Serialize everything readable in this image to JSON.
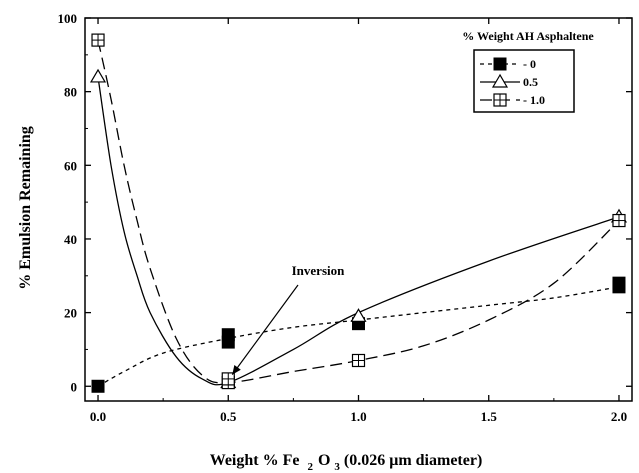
{
  "chart_data": {
    "type": "scatter",
    "xlabel_parts": [
      "Weight % Fe",
      "2",
      "O",
      "3",
      " (0.026 μm diameter)"
    ],
    "ylabel": "% Emulsion Remaining",
    "xlim": [
      -0.05,
      2.05
    ],
    "ylim": [
      -4,
      100
    ],
    "x_ticks": [
      0.0,
      0.5,
      1.0,
      1.5,
      2.0
    ],
    "x_tick_labels": [
      "0.0",
      "0.5",
      "1.0",
      "1.5",
      "2.0"
    ],
    "y_ticks": [
      0,
      20,
      40,
      60,
      80,
      100
    ],
    "y_tick_labels": [
      "0",
      "20",
      "40",
      "60",
      "80",
      "100"
    ],
    "legend": {
      "title": "% Weight AH Asphaltene",
      "placement": "top-right"
    },
    "series": [
      {
        "name": "0",
        "legend_label": "- 0",
        "marker": "filled-square",
        "line": "short-dash",
        "points": [
          {
            "x": 0.0,
            "y": 0
          },
          {
            "x": 0.5,
            "y": 12
          },
          {
            "x": 0.5,
            "y": 14
          },
          {
            "x": 1.0,
            "y": 17
          },
          {
            "x": 2.0,
            "y": 27
          },
          {
            "x": 2.0,
            "y": 28
          }
        ],
        "curve": [
          {
            "x": 0.0,
            "y": 0
          },
          {
            "x": 0.1,
            "y": 4
          },
          {
            "x": 0.25,
            "y": 9
          },
          {
            "x": 0.5,
            "y": 13
          },
          {
            "x": 0.75,
            "y": 16
          },
          {
            "x": 1.0,
            "y": 18
          },
          {
            "x": 1.25,
            "y": 20
          },
          {
            "x": 1.5,
            "y": 22
          },
          {
            "x": 1.75,
            "y": 24
          },
          {
            "x": 2.0,
            "y": 27
          }
        ]
      },
      {
        "name": "0.5",
        "legend_label": "0.5",
        "marker": "open-triangle",
        "line": "solid",
        "points": [
          {
            "x": 0.0,
            "y": 84
          },
          {
            "x": 0.5,
            "y": 1
          },
          {
            "x": 1.0,
            "y": 19
          },
          {
            "x": 2.0,
            "y": 46
          }
        ],
        "curve": [
          {
            "x": 0.0,
            "y": 84
          },
          {
            "x": 0.05,
            "y": 60
          },
          {
            "x": 0.1,
            "y": 42
          },
          {
            "x": 0.15,
            "y": 30
          },
          {
            "x": 0.2,
            "y": 20
          },
          {
            "x": 0.3,
            "y": 8
          },
          {
            "x": 0.4,
            "y": 2
          },
          {
            "x": 0.5,
            "y": 1
          },
          {
            "x": 0.75,
            "y": 10
          },
          {
            "x": 1.0,
            "y": 20
          },
          {
            "x": 1.5,
            "y": 34
          },
          {
            "x": 2.0,
            "y": 46
          }
        ]
      },
      {
        "name": "1.0",
        "legend_label": "- 1.0",
        "marker": "crossed-square",
        "line": "long-dash",
        "points": [
          {
            "x": 0.0,
            "y": 94
          },
          {
            "x": 0.5,
            "y": 1
          },
          {
            "x": 0.5,
            "y": 2
          },
          {
            "x": 1.0,
            "y": 7
          },
          {
            "x": 2.0,
            "y": 45
          }
        ],
        "curve": [
          {
            "x": 0.0,
            "y": 94
          },
          {
            "x": 0.05,
            "y": 78
          },
          {
            "x": 0.1,
            "y": 60
          },
          {
            "x": 0.15,
            "y": 45
          },
          {
            "x": 0.2,
            "y": 32
          },
          {
            "x": 0.3,
            "y": 13
          },
          {
            "x": 0.4,
            "y": 3
          },
          {
            "x": 0.5,
            "y": 1
          },
          {
            "x": 0.75,
            "y": 4
          },
          {
            "x": 1.0,
            "y": 7
          },
          {
            "x": 1.25,
            "y": 11
          },
          {
            "x": 1.5,
            "y": 18
          },
          {
            "x": 1.75,
            "y": 28
          },
          {
            "x": 2.0,
            "y": 45
          }
        ]
      }
    ],
    "annotations": [
      {
        "text": "Inversion",
        "target": {
          "x": 0.5,
          "y": 1
        }
      }
    ]
  }
}
